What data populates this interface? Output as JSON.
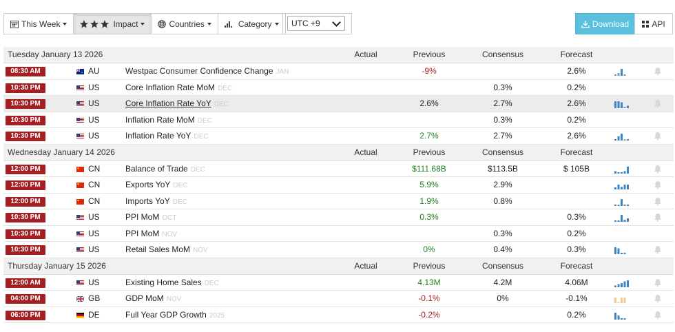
{
  "toolbar": {
    "week_label": "This Week",
    "impact_label": "Impact",
    "countries_label": "Countries",
    "category_label": "Category",
    "timezone_value": "UTC +9",
    "download_label": "Download",
    "api_label": "API"
  },
  "columns": {
    "actual": "Actual",
    "previous": "Previous",
    "consensus": "Consensus",
    "forecast": "Forecast"
  },
  "colors": {
    "time_badge": "#a41e22",
    "negative": "#a41e22",
    "positive": "#1f7f1f",
    "download_bg": "#5bc0de",
    "spark_blue": "#3d85c6",
    "spark_orange": "#f6c98d"
  },
  "days": [
    {
      "date": "Tuesday January 13 2026",
      "events": [
        {
          "time": "08:30 AM",
          "flag": "au",
          "country": "AU",
          "event": "Westpac Consumer Confidence Change",
          "ref": "JAN",
          "actual": "",
          "previous": "-9%",
          "prev_tone": "neg",
          "consensus": "",
          "forecast": "2.6%",
          "spark": [
            0.2,
            0.4,
            1.0,
            0.2
          ],
          "spark_color": "blue",
          "spark_faded": true,
          "highlight": false,
          "link": false
        },
        {
          "time": "10:30 PM",
          "flag": "us",
          "country": "US",
          "event": "Core Inflation Rate MoM",
          "ref": "DEC",
          "actual": "",
          "previous": "",
          "prev_tone": "neu",
          "consensus": "0.3%",
          "forecast": "0.2%",
          "spark": [],
          "spark_color": "blue",
          "highlight": false,
          "link": false
        },
        {
          "time": "10:30 PM",
          "flag": "us",
          "country": "US",
          "event": "Core Inflation Rate YoY",
          "ref": "DEC",
          "actual": "",
          "previous": "2.6%",
          "prev_tone": "neu",
          "consensus": "2.7%",
          "forecast": "2.6%",
          "spark": [
            1.0,
            1.0,
            0.85,
            0.0,
            0.35
          ],
          "spark_color": "blue",
          "highlight": true,
          "link": true
        },
        {
          "time": "10:30 PM",
          "flag": "us",
          "country": "US",
          "event": "Inflation Rate MoM",
          "ref": "DEC",
          "actual": "",
          "previous": "",
          "prev_tone": "neu",
          "consensus": "0.3%",
          "forecast": "0.2%",
          "spark": [],
          "spark_color": "blue",
          "highlight": false,
          "link": false
        },
        {
          "time": "10:30 PM",
          "flag": "us",
          "country": "US",
          "event": "Inflation Rate YoY",
          "ref": "DEC",
          "actual": "",
          "previous": "2.7%",
          "prev_tone": "pos",
          "consensus": "2.7%",
          "forecast": "2.6%",
          "spark": [
            0.2,
            0.6,
            1.0,
            0.0,
            0.2
          ],
          "spark_color": "blue",
          "highlight": false,
          "link": false
        }
      ]
    },
    {
      "date": "Wednesday January 14 2026",
      "events": [
        {
          "time": "12:00 PM",
          "flag": "cn",
          "country": "CN",
          "event": "Balance of Trade",
          "ref": "DEC",
          "actual": "",
          "previous": "$111.68B",
          "prev_tone": "pos",
          "consensus": "$113.5B",
          "forecast": "$ 105B",
          "spark": [
            0.35,
            0.2,
            0.2,
            0.35,
            1.0
          ],
          "spark_color": "blue",
          "highlight": false,
          "link": false
        },
        {
          "time": "12:00 PM",
          "flag": "cn",
          "country": "CN",
          "event": "Exports YoY",
          "ref": "DEC",
          "actual": "",
          "previous": "5.9%",
          "prev_tone": "pos",
          "consensus": "2.9%",
          "forecast": "",
          "spark": [
            0.3,
            0.7,
            0.35,
            0.7,
            0.7
          ],
          "spark_color": "blue",
          "highlight": false,
          "link": false
        },
        {
          "time": "12:00 PM",
          "flag": "cn",
          "country": "CN",
          "event": "Imports YoY",
          "ref": "DEC",
          "actual": "",
          "previous": "1.9%",
          "prev_tone": "pos",
          "consensus": "0.8%",
          "forecast": "",
          "spark": [
            0.2,
            0.15,
            1.0,
            0.2,
            0.2
          ],
          "spark_color": "blue",
          "highlight": false,
          "link": false
        },
        {
          "time": "10:30 PM",
          "flag": "us",
          "country": "US",
          "event": "PPI MoM",
          "ref": "OCT",
          "actual": "",
          "previous": "0.3%",
          "prev_tone": "pos",
          "consensus": "",
          "forecast": "0.3%",
          "spark": [
            0.2,
            0.2,
            1.0,
            0.3,
            0.5
          ],
          "spark_color": "blue",
          "highlight": false,
          "link": false
        },
        {
          "time": "10:30 PM",
          "flag": "us",
          "country": "US",
          "event": "PPI MoM",
          "ref": "NOV",
          "actual": "",
          "previous": "",
          "prev_tone": "neu",
          "consensus": "0.3%",
          "forecast": "0.2%",
          "spark": [],
          "spark_color": "blue",
          "highlight": false,
          "link": false
        },
        {
          "time": "10:30 PM",
          "flag": "us",
          "country": "US",
          "event": "Retail Sales MoM",
          "ref": "NOV",
          "actual": "",
          "previous": "0%",
          "prev_tone": "pos",
          "consensus": "0.4%",
          "forecast": "0.3%",
          "spark": [
            1.0,
            0.85,
            0.2,
            0.2
          ],
          "spark_color": "blue",
          "highlight": false,
          "link": false
        }
      ]
    },
    {
      "date": "Thursday January 15 2026",
      "events": [
        {
          "time": "12:00 AM",
          "flag": "us",
          "country": "US",
          "event": "Existing Home Sales",
          "ref": "DEC",
          "actual": "",
          "previous": "4.13M",
          "prev_tone": "pos",
          "consensus": "4.2M",
          "forecast": "4.06M",
          "spark": [
            0.25,
            0.45,
            0.6,
            0.85,
            1.0
          ],
          "spark_color": "blue",
          "highlight": false,
          "link": false
        },
        {
          "time": "04:00 PM",
          "flag": "gb",
          "country": "GB",
          "event": "GDP MoM",
          "ref": "NOV",
          "actual": "",
          "previous": "-0.1%",
          "prev_tone": "neg",
          "consensus": "0%",
          "forecast": "-0.1%",
          "spark": [
            0.8,
            0.0,
            0.8,
            0.8
          ],
          "spark_color": "orange",
          "highlight": false,
          "link": false
        },
        {
          "time": "06:00 PM",
          "flag": "de",
          "country": "DE",
          "event": "Full Year GDP Growth",
          "ref": "2025",
          "actual": "",
          "previous": "-0.2%",
          "prev_tone": "neg",
          "consensus": "",
          "forecast": "0.2%",
          "spark": [
            1.0,
            0.6,
            0.2,
            0.2
          ],
          "spark_color": "blue",
          "highlight": false,
          "link": false
        }
      ]
    }
  ]
}
